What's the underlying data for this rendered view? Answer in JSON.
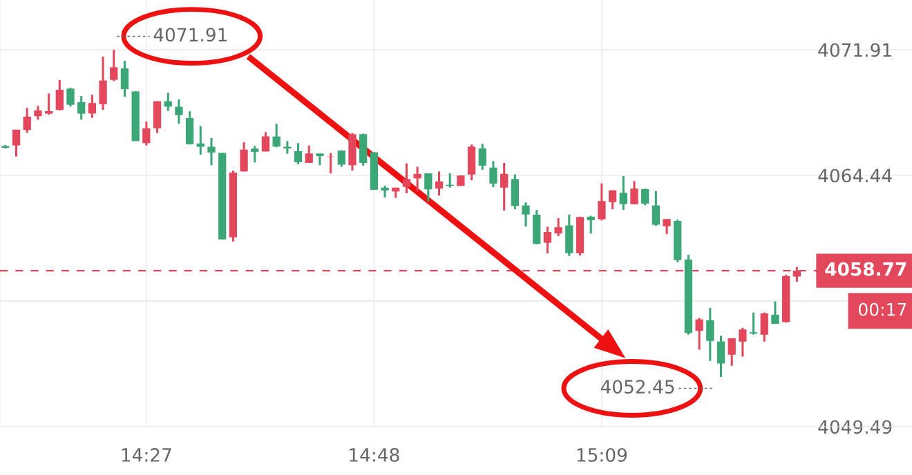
{
  "chart_data": {
    "type": "candlestick",
    "categories": [
      null,
      null,
      null,
      null,
      null,
      null,
      null,
      null,
      null,
      null,
      null,
      null,
      null,
      "14:27",
      null,
      null,
      null,
      null,
      null,
      null,
      null,
      null,
      null,
      null,
      null,
      null,
      null,
      null,
      null,
      null,
      null,
      null,
      null,
      null,
      "14:48",
      null,
      null,
      null,
      null,
      null,
      null,
      null,
      null,
      null,
      null,
      null,
      null,
      null,
      null,
      null,
      null,
      null,
      null,
      null,
      null,
      "15:09",
      null,
      null,
      null,
      null,
      null,
      null,
      null,
      null,
      null,
      null,
      null,
      null,
      null,
      null,
      null,
      null,
      null,
      null
    ],
    "ohlc": [
      [
        4066.18,
        4066.25,
        4066.04,
        4066.08
      ],
      [
        4066.22,
        4067.16,
        4065.56,
        4067.16
      ],
      [
        4067.14,
        4068.45,
        4066.97,
        4067.93
      ],
      [
        4067.96,
        4068.57,
        4067.75,
        4068.3
      ],
      [
        4068.11,
        4069.31,
        4068.05,
        4068.26
      ],
      [
        4068.33,
        4070.11,
        4068.3,
        4069.53
      ],
      [
        4069.6,
        4069.64,
        4068.53,
        4068.64
      ],
      [
        4068.79,
        4069.16,
        4067.75,
        4068.11
      ],
      [
        4068.12,
        4069.23,
        4067.86,
        4068.74
      ],
      [
        4068.67,
        4071.5,
        4068.34,
        4070.08
      ],
      [
        4070.12,
        4071.91,
        4070.05,
        4070.87
      ],
      [
        4070.8,
        4071.25,
        4069.11,
        4069.57
      ],
      [
        4069.43,
        4069.45,
        4066.48,
        4066.48
      ],
      [
        4066.36,
        4067.64,
        4066.22,
        4067.24
      ],
      [
        4067.24,
        4068.85,
        4066.96,
        4068.85
      ],
      [
        4068.85,
        4069.35,
        4068.27,
        4068.53
      ],
      [
        4068.52,
        4068.96,
        4067.51,
        4068.02
      ],
      [
        4067.85,
        4068.25,
        4066.27,
        4066.29
      ],
      [
        4066.34,
        4067.37,
        4065.67,
        4066.14
      ],
      [
        4066.14,
        4066.66,
        4065.04,
        4065.8
      ],
      [
        4065.77,
        4065.77,
        4060.63,
        4060.63
      ],
      [
        4060.75,
        4064.72,
        4060.5,
        4064.6
      ],
      [
        4064.67,
        4066.41,
        4064.67,
        4065.97
      ],
      [
        4066.03,
        4066.19,
        4065.21,
        4065.84
      ],
      [
        4065.86,
        4067.01,
        4065.86,
        4066.76
      ],
      [
        4066.75,
        4067.51,
        4066.11,
        4066.15
      ],
      [
        4066.14,
        4066.48,
        4065.73,
        4066.04
      ],
      [
        4065.88,
        4066.36,
        4065.11,
        4065.22
      ],
      [
        4065.18,
        4066.21,
        4065.18,
        4065.74
      ],
      [
        4065.74,
        4065.74,
        4065.04,
        4065.59
      ],
      [
        4065.54,
        4065.77,
        4064.56,
        4065.56
      ],
      [
        4065.91,
        4065.93,
        4064.95,
        4065.08
      ],
      [
        4065.04,
        4066.96,
        4064.72,
        4066.89
      ],
      [
        4066.89,
        4066.92,
        4065.02,
        4065.18
      ],
      [
        4065.81,
        4065.81,
        4063.58,
        4063.58
      ],
      [
        4063.71,
        4063.82,
        4063.13,
        4063.54
      ],
      [
        4063.48,
        4063.71,
        4063.1,
        4063.71
      ],
      [
        4063.75,
        4065.15,
        4063.37,
        4064.22
      ],
      [
        4064.26,
        4064.95,
        4063.51,
        4064.53
      ],
      [
        4064.56,
        4064.56,
        4062.89,
        4063.61
      ],
      [
        4063.65,
        4064.67,
        4063.24,
        4064.08
      ],
      [
        4063.88,
        4064.56,
        4063.71,
        4063.82
      ],
      [
        4063.81,
        4064.43,
        4063.81,
        4064.43
      ],
      [
        4064.49,
        4066.28,
        4064.15,
        4066.15
      ],
      [
        4066.04,
        4066.32,
        4064.77,
        4065.02
      ],
      [
        4064.9,
        4065.29,
        4063.74,
        4063.95
      ],
      [
        4063.71,
        4065.18,
        4062.35,
        4064.53
      ],
      [
        4064.22,
        4064.49,
        4062.42,
        4062.62
      ],
      [
        4062.65,
        4062.83,
        4061.39,
        4062.11
      ],
      [
        4062.1,
        4062.38,
        4060.34,
        4060.36
      ],
      [
        4060.43,
        4061.39,
        4059.81,
        4061.07
      ],
      [
        4060.98,
        4061.9,
        4060.82,
        4061.35
      ],
      [
        4061.46,
        4062.11,
        4059.64,
        4059.81
      ],
      [
        4059.81,
        4061.98,
        4059.68,
        4061.96
      ],
      [
        4061.98,
        4062.03,
        4060.98,
        4061.77
      ],
      [
        4061.83,
        4063.96,
        4061.76,
        4062.91
      ],
      [
        4062.85,
        4063.55,
        4062.42,
        4063.55
      ],
      [
        4063.4,
        4064.4,
        4062.38,
        4062.73
      ],
      [
        4062.72,
        4064.1,
        4062.72,
        4063.65
      ],
      [
        4063.62,
        4063.65,
        4062.66,
        4062.76
      ],
      [
        4062.65,
        4063.51,
        4061.43,
        4061.5
      ],
      [
        4061.41,
        4061.84,
        4060.94,
        4061.84
      ],
      [
        4061.73,
        4061.8,
        4059.27,
        4059.4
      ],
      [
        4059.43,
        4059.71,
        4054.96,
        4055.06
      ],
      [
        4055.19,
        4055.96,
        4054.07,
        4055.87
      ],
      [
        4055.82,
        4056.56,
        4053.4,
        4054.59
      ],
      [
        4054.56,
        4054.89,
        4052.45,
        4053.25
      ],
      [
        4053.77,
        4054.75,
        4053.11,
        4054.75
      ],
      [
        4054.55,
        4055.37,
        4053.66,
        4055.27
      ],
      [
        4055.11,
        4056.28,
        4054.96,
        4055.03
      ],
      [
        4054.96,
        4056.28,
        4054.55,
        4056.23
      ],
      [
        4056.15,
        4056.94,
        4055.61,
        4055.61
      ],
      [
        4055.71,
        4058.52,
        4055.68,
        4058.45
      ],
      [
        4058.42,
        4058.99,
        4058.11,
        4058.77
      ]
    ],
    "colors": [
      "#3ba676",
      "#e2475b",
      "#e2475b",
      "#e2475b",
      "#e2475b",
      "#e2475b",
      "#3ba676",
      "#3ba676",
      "#e2475b",
      "#e2475b",
      "#e2475b",
      "#3ba676",
      "#3ba676",
      "#e2475b",
      "#e2475b",
      "#3ba676",
      "#3ba676",
      "#3ba676",
      "#3ba676",
      "#3ba676",
      "#3ba676",
      "#e2475b",
      "#e2475b",
      "#3ba676",
      "#e2475b",
      "#3ba676",
      "#3ba676",
      "#3ba676",
      "#e2475b",
      "#3ba676",
      "#e2475b",
      "#3ba676",
      "#e2475b",
      "#3ba676",
      "#3ba676",
      "#3ba676",
      "#e2475b",
      "#e2475b",
      "#e2475b",
      "#3ba676",
      "#e2475b",
      "#3ba676",
      "#e2475b",
      "#e2475b",
      "#3ba676",
      "#3ba676",
      "#e2475b",
      "#3ba676",
      "#3ba676",
      "#3ba676",
      "#e2475b",
      "#e2475b",
      "#3ba676",
      "#e2475b",
      "#3ba676",
      "#e2475b",
      "#e2475b",
      "#3ba676",
      "#e2475b",
      "#3ba676",
      "#3ba676",
      "#e2475b",
      "#3ba676",
      "#3ba676",
      "#e2475b",
      "#3ba676",
      "#3ba676",
      "#e2475b",
      "#e2475b",
      "#3ba676",
      "#e2475b",
      "#3ba676",
      "#e2475b",
      "#e2475b"
    ],
    "ylim": [
      4049.49,
      4074.87
    ],
    "yticks": [
      4049.49,
      {
        "value": 4056.97,
        "label": null
      },
      4064.44,
      4071.91
    ],
    "grid": true,
    "ref_lines": [
      {
        "axis": "y",
        "value": 4058.77,
        "label": "4058.77",
        "color": "#e2475b",
        "line_style": "dashed"
      }
    ],
    "annotations": [
      "4071.91",
      "4052.45",
      "00:17"
    ]
  }
}
